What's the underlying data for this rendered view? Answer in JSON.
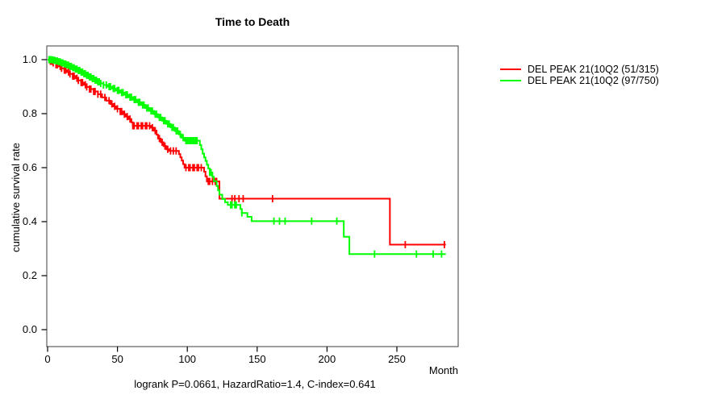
{
  "chart_data": {
    "type": "line",
    "subtype": "kaplan-meier-step",
    "title": "Time to Death",
    "xlabel": "Month",
    "ylabel": "cumulative survival rate",
    "footer": "logrank P=0.0661, HazardRatio=1.4, C-index=0.641",
    "xlim": [
      0,
      294
    ],
    "ylim": [
      0.0,
      1.05
    ],
    "grid": false,
    "legend_position": "right-outside-top",
    "x_ticks": [
      0,
      50,
      100,
      150,
      200,
      250
    ],
    "x_tick_labels": [
      "0",
      "50",
      "100",
      "150",
      "200",
      "250"
    ],
    "y_ticks": [
      0.0,
      0.2,
      0.4,
      0.6,
      0.8,
      1.0
    ],
    "y_tick_labels": [
      "0.0",
      "0.2",
      "0.4",
      "0.6",
      "0.8",
      "1.0"
    ],
    "legend": [
      {
        "label": "DEL PEAK 21(10Q2 (51/315)",
        "color": "#ff0000"
      },
      {
        "label": "DEL PEAK 21(10Q2 (97/750)",
        "color": "#00ff00"
      }
    ],
    "series": [
      {
        "name": "DEL PEAK 21(10Q2 (51/315)",
        "color": "#ff0000",
        "start": [
          0,
          1.0
        ],
        "end_month": 285,
        "steps": [
          [
            2,
            0.994
          ],
          [
            4,
            0.988
          ],
          [
            6,
            0.981
          ],
          [
            8,
            0.975
          ],
          [
            10,
            0.968
          ],
          [
            12,
            0.961
          ],
          [
            14,
            0.954
          ],
          [
            16,
            0.947
          ],
          [
            18,
            0.939
          ],
          [
            20,
            0.931
          ],
          [
            22,
            0.923
          ],
          [
            24,
            0.915
          ],
          [
            26,
            0.907
          ],
          [
            28,
            0.899
          ],
          [
            30,
            0.891
          ],
          [
            33,
            0.882
          ],
          [
            36,
            0.872
          ],
          [
            39,
            0.86
          ],
          [
            42,
            0.848
          ],
          [
            45,
            0.836
          ],
          [
            47,
            0.827
          ],
          [
            49,
            0.818
          ],
          [
            52,
            0.808
          ],
          [
            54,
            0.798
          ],
          [
            56,
            0.789
          ],
          [
            58,
            0.78
          ],
          [
            60,
            0.768
          ],
          [
            61,
            0.755
          ],
          [
            74,
            0.748
          ],
          [
            76,
            0.737
          ],
          [
            78,
            0.722
          ],
          [
            79,
            0.708
          ],
          [
            81,
            0.694
          ],
          [
            83,
            0.68
          ],
          [
            85,
            0.668
          ],
          [
            87,
            0.662
          ],
          [
            94,
            0.65
          ],
          [
            95,
            0.638
          ],
          [
            96,
            0.626
          ],
          [
            97,
            0.613
          ],
          [
            98,
            0.6
          ],
          [
            112,
            0.585
          ],
          [
            113,
            0.568
          ],
          [
            114,
            0.549
          ],
          [
            123,
            0.485
          ],
          [
            245,
            0.315
          ]
        ],
        "censor_months": [
          2,
          3,
          4,
          6,
          7,
          9,
          10,
          12,
          13,
          15,
          16,
          18,
          19,
          21,
          22,
          24,
          25,
          27,
          28,
          30,
          31,
          33,
          34,
          36,
          38,
          41,
          44,
          46,
          48,
          50,
          52,
          53,
          55,
          57,
          59,
          61,
          62,
          64,
          65,
          67,
          68,
          70,
          71,
          73,
          75,
          77,
          80,
          82,
          84,
          86,
          88,
          90,
          92,
          99,
          101,
          102,
          104,
          105,
          107,
          108,
          110,
          115,
          116,
          118,
          120,
          121,
          132,
          134,
          137,
          140,
          161,
          256,
          284
        ]
      },
      {
        "name": "DEL PEAK 21(10Q2 (97/750)",
        "color": "#00ff00",
        "start": [
          0,
          1.0
        ],
        "end_month": 285,
        "steps": [
          [
            4,
            0.998
          ],
          [
            6,
            0.995
          ],
          [
            8,
            0.992
          ],
          [
            10,
            0.988
          ],
          [
            12,
            0.984
          ],
          [
            14,
            0.98
          ],
          [
            16,
            0.975
          ],
          [
            18,
            0.97
          ],
          [
            20,
            0.965
          ],
          [
            22,
            0.96
          ],
          [
            24,
            0.954
          ],
          [
            26,
            0.948
          ],
          [
            28,
            0.942
          ],
          [
            30,
            0.936
          ],
          [
            32,
            0.93
          ],
          [
            34,
            0.924
          ],
          [
            36,
            0.918
          ],
          [
            38,
            0.912
          ],
          [
            40,
            0.906
          ],
          [
            43,
            0.9
          ],
          [
            46,
            0.893
          ],
          [
            49,
            0.886
          ],
          [
            52,
            0.878
          ],
          [
            55,
            0.87
          ],
          [
            58,
            0.861
          ],
          [
            61,
            0.852
          ],
          [
            64,
            0.842
          ],
          [
            67,
            0.832
          ],
          [
            70,
            0.821
          ],
          [
            73,
            0.81
          ],
          [
            76,
            0.798
          ],
          [
            79,
            0.786
          ],
          [
            82,
            0.774
          ],
          [
            85,
            0.762
          ],
          [
            88,
            0.749
          ],
          [
            91,
            0.736
          ],
          [
            94,
            0.723
          ],
          [
            96,
            0.711
          ],
          [
            98,
            0.7
          ],
          [
            109,
            0.684
          ],
          [
            110,
            0.668
          ],
          [
            111,
            0.652
          ],
          [
            112,
            0.638
          ],
          [
            113,
            0.625
          ],
          [
            114,
            0.611
          ],
          [
            115,
            0.597
          ],
          [
            116,
            0.582
          ],
          [
            118,
            0.566
          ],
          [
            119,
            0.55
          ],
          [
            121,
            0.532
          ],
          [
            122,
            0.516
          ],
          [
            123,
            0.5
          ],
          [
            125,
            0.484
          ],
          [
            127,
            0.472
          ],
          [
            129,
            0.462
          ],
          [
            138,
            0.447
          ],
          [
            139,
            0.432
          ],
          [
            143,
            0.418
          ],
          [
            146,
            0.402
          ],
          [
            212,
            0.344
          ],
          [
            216,
            0.28
          ]
        ],
        "censor_months": [
          1,
          2,
          3,
          4,
          5,
          6,
          7,
          8,
          9,
          10,
          11,
          12,
          13,
          14,
          15,
          16,
          17,
          18,
          19,
          20,
          21,
          22,
          23,
          24,
          25,
          26,
          27,
          28,
          29,
          30,
          31,
          32,
          33,
          34,
          35,
          36,
          37,
          38,
          40,
          42,
          44,
          45,
          47,
          48,
          50,
          51,
          53,
          54,
          56,
          57,
          59,
          60,
          62,
          63,
          65,
          66,
          68,
          69,
          71,
          72,
          74,
          75,
          77,
          78,
          80,
          81,
          83,
          84,
          86,
          87,
          89,
          90,
          92,
          93,
          95,
          97,
          99,
          100,
          101,
          102,
          103,
          104,
          105,
          106,
          107,
          116,
          117,
          131,
          132,
          134,
          135,
          139,
          162,
          166,
          170,
          189,
          207,
          234,
          264,
          276,
          282
        ]
      }
    ],
    "style": {
      "box_color": "#3c3c3c",
      "tick_color": "#000000",
      "line_width": 2,
      "censor_tick_height": 9
    }
  }
}
